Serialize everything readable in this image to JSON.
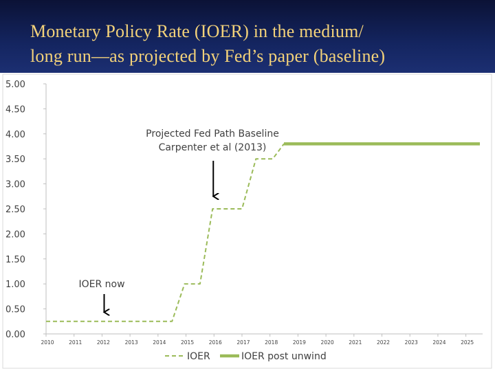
{
  "slide": {
    "title_line1": "Monetary Policy Rate (IOER) in the medium/",
    "title_line2": "long run—as projected by Fed’s paper (baseline)"
  },
  "chart_data": {
    "type": "line",
    "title": "",
    "xlabel": "",
    "ylabel": "",
    "ylim": [
      0,
      5
    ],
    "yticks": [
      "0.00",
      "0.50",
      "1.00",
      "1.50",
      "2.00",
      "2.50",
      "3.00",
      "3.50",
      "4.00",
      "4.50",
      "5.00"
    ],
    "xticks": [
      "2010",
      "2011",
      "2012",
      "2013",
      "2014",
      "2015",
      "2016",
      "2017",
      "2018",
      "2019",
      "2020",
      "2021",
      "2022",
      "2023",
      "2024",
      "2025"
    ],
    "series": [
      {
        "name": "IOER",
        "style": "dashed",
        "color": "#9bbb59",
        "points": [
          [
            2010,
            0.25
          ],
          [
            2014.5,
            0.25
          ],
          [
            2014.95,
            1.0
          ],
          [
            2015.5,
            1.0
          ],
          [
            2015.95,
            2.5
          ],
          [
            2017.0,
            2.5
          ],
          [
            2017.5,
            3.5
          ],
          [
            2018.1,
            3.5
          ],
          [
            2018.5,
            3.8
          ]
        ]
      },
      {
        "name": "IOER post unwind",
        "style": "solid",
        "color": "#9bbb59",
        "points": [
          [
            2018.5,
            3.8
          ],
          [
            2025.5,
            3.8
          ]
        ]
      }
    ],
    "annotations": [
      {
        "text_line1": "Projected Fed Path Baseline",
        "text_line2": "Carpenter et al (2013)",
        "arrow_x": 2016.0,
        "arrow_to_y": 2.75
      },
      {
        "text_line1": "IOER now",
        "arrow_x": 2012.1,
        "arrow_to_y": 0.42
      }
    ],
    "legend": {
      "position": "bottom-center",
      "items": [
        "IOER",
        "IOER post unwind"
      ]
    }
  }
}
